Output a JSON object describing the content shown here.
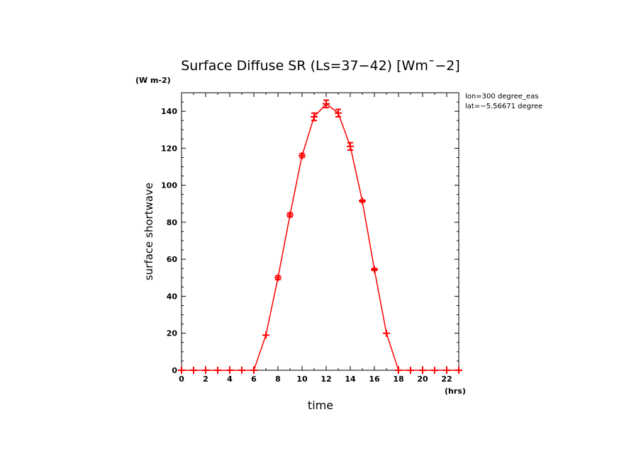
{
  "chart_data": {
    "type": "line",
    "title": "Surface Diffuse SR (Ls=37-42) [Wm^-2]",
    "title_display": "Surface Diffuse SR (Ls=37−42) [Wm¯−2]",
    "y_unit": "(W m-2)",
    "xlabel": "time",
    "x_unit": "(hrs)",
    "ylabel": "surface shortwave",
    "annotations": [
      "lon=300 degree_eas",
      "lat=-5.56671 degree"
    ],
    "annotations_display": [
      "lon=300 degree_eas",
      "lat=−5.56671 degree"
    ],
    "xlim": [
      0,
      23
    ],
    "ylim": [
      0,
      150
    ],
    "xticks": [
      0,
      2,
      4,
      6,
      8,
      10,
      12,
      14,
      16,
      18,
      20,
      22
    ],
    "yticks": [
      0,
      20,
      40,
      60,
      80,
      100,
      120,
      140
    ],
    "grid": false,
    "series": [
      {
        "color": "#ff0000",
        "marker": "plus",
        "x": [
          0,
          1,
          2,
          3,
          4,
          5,
          6,
          7,
          8,
          9,
          10,
          11,
          12,
          13,
          14,
          15,
          16,
          17,
          18,
          19,
          20,
          21,
          22,
          23
        ],
        "y": [
          0,
          0,
          0,
          0,
          0,
          0,
          0,
          19,
          50,
          84,
          116,
          137,
          144,
          139,
          121,
          91.5,
          54.5,
          20,
          0,
          0,
          0,
          0,
          0,
          0
        ],
        "error_low": [
          0,
          0,
          0,
          0,
          0,
          0,
          0,
          19,
          49,
          83,
          115,
          135,
          142,
          137,
          119,
          91,
          54,
          20,
          0,
          0,
          0,
          0,
          0,
          0
        ],
        "error_high": [
          0,
          0,
          0,
          0,
          0,
          0,
          0,
          19,
          51,
          85,
          117,
          139,
          146,
          141,
          123,
          92,
          55,
          20,
          0,
          0,
          0,
          0,
          0,
          0
        ]
      }
    ]
  }
}
